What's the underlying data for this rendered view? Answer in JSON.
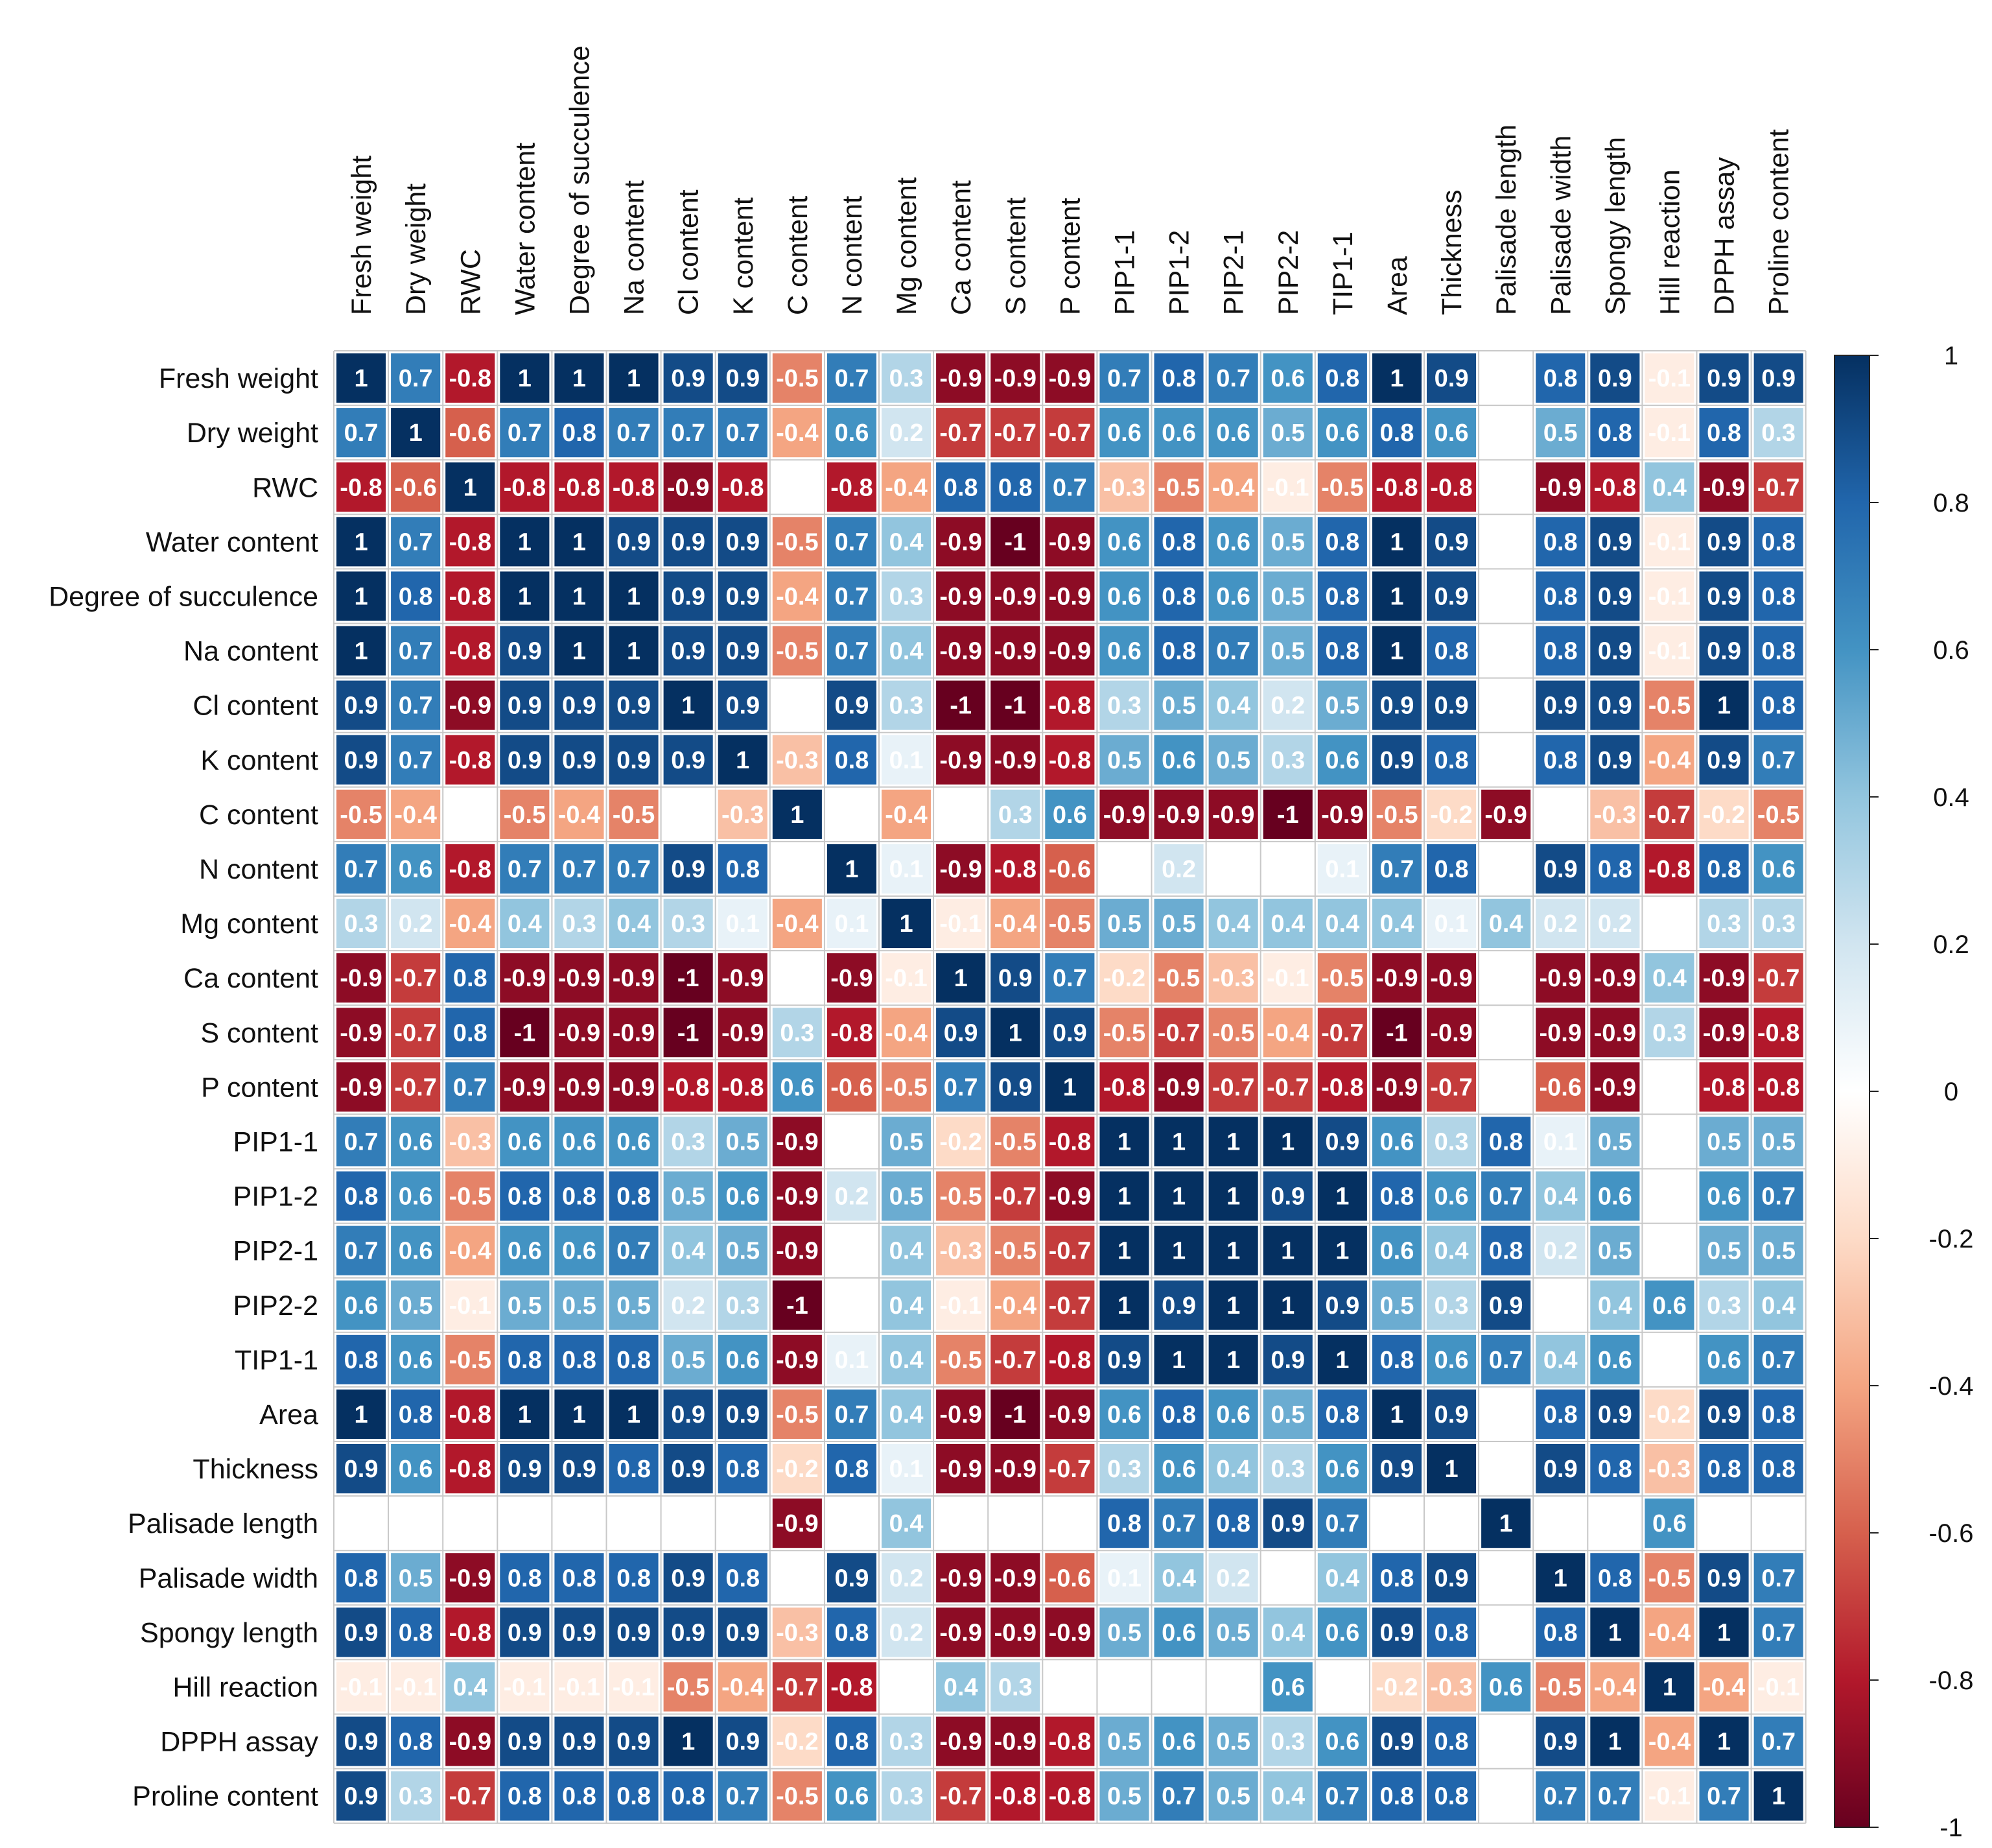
{
  "chart_data": {
    "type": "heatmap",
    "title": "",
    "variables": [
      "Fresh weight",
      "Dry weight",
      "RWC",
      "Water content",
      "Degree of succulence",
      "Na content",
      "Cl content",
      "K content",
      "C content",
      "N content",
      "Mg content",
      "Ca content",
      "S content",
      "P content",
      "PIP1-1",
      "PIP1-2",
      "PIP2-1",
      "PIP2-2",
      "TIP1-1",
      "Area",
      "Thickness",
      "Palisade length",
      "Palisade width",
      "Spongy length",
      "Hill reaction",
      "DPPH assay",
      "Proline content"
    ],
    "matrix": [
      [
        1,
        0.7,
        -0.8,
        1,
        1,
        1,
        0.9,
        0.9,
        -0.5,
        0.7,
        0.3,
        -0.9,
        -0.9,
        -0.9,
        0.7,
        0.8,
        0.7,
        0.6,
        0.8,
        1,
        0.9,
        null,
        0.8,
        0.9,
        -0.1,
        0.9,
        0.9
      ],
      [
        0.7,
        1,
        -0.6,
        0.7,
        0.8,
        0.7,
        0.7,
        0.7,
        -0.4,
        0.6,
        0.2,
        -0.7,
        -0.7,
        -0.7,
        0.6,
        0.6,
        0.6,
        0.5,
        0.6,
        0.8,
        0.6,
        null,
        0.5,
        0.8,
        -0.1,
        0.8,
        0.3
      ],
      [
        -0.8,
        -0.6,
        1,
        -0.8,
        -0.8,
        -0.8,
        -0.9,
        -0.8,
        null,
        -0.8,
        -0.4,
        0.8,
        0.8,
        0.7,
        -0.3,
        -0.5,
        -0.4,
        -0.1,
        -0.5,
        -0.8,
        -0.8,
        null,
        -0.9,
        -0.8,
        0.4,
        -0.9,
        -0.7
      ],
      [
        1,
        0.7,
        -0.8,
        1,
        1,
        0.9,
        0.9,
        0.9,
        -0.5,
        0.7,
        0.4,
        -0.9,
        -1,
        -0.9,
        0.6,
        0.8,
        0.6,
        0.5,
        0.8,
        1,
        0.9,
        null,
        0.8,
        0.9,
        -0.1,
        0.9,
        0.8
      ],
      [
        1,
        0.8,
        -0.8,
        1,
        1,
        1,
        0.9,
        0.9,
        -0.4,
        0.7,
        0.3,
        -0.9,
        -0.9,
        -0.9,
        0.6,
        0.8,
        0.6,
        0.5,
        0.8,
        1,
        0.9,
        null,
        0.8,
        0.9,
        -0.1,
        0.9,
        0.8
      ],
      [
        1,
        0.7,
        -0.8,
        0.9,
        1,
        1,
        0.9,
        0.9,
        -0.5,
        0.7,
        0.4,
        -0.9,
        -0.9,
        -0.9,
        0.6,
        0.8,
        0.7,
        0.5,
        0.8,
        1,
        0.8,
        null,
        0.8,
        0.9,
        -0.1,
        0.9,
        0.8
      ],
      [
        0.9,
        0.7,
        -0.9,
        0.9,
        0.9,
        0.9,
        1,
        0.9,
        null,
        0.9,
        0.3,
        -1,
        -1,
        -0.8,
        0.3,
        0.5,
        0.4,
        0.2,
        0.5,
        0.9,
        0.9,
        null,
        0.9,
        0.9,
        -0.5,
        1,
        0.8
      ],
      [
        0.9,
        0.7,
        -0.8,
        0.9,
        0.9,
        0.9,
        0.9,
        1,
        -0.3,
        0.8,
        0.1,
        -0.9,
        -0.9,
        -0.8,
        0.5,
        0.6,
        0.5,
        0.3,
        0.6,
        0.9,
        0.8,
        null,
        0.8,
        0.9,
        -0.4,
        0.9,
        0.7
      ],
      [
        -0.5,
        -0.4,
        null,
        -0.5,
        -0.4,
        -0.5,
        null,
        -0.3,
        1,
        null,
        -0.4,
        null,
        0.3,
        0.6,
        -0.9,
        -0.9,
        -0.9,
        -1,
        -0.9,
        -0.5,
        -0.2,
        -0.9,
        null,
        -0.3,
        -0.7,
        -0.2,
        -0.5
      ],
      [
        0.7,
        0.6,
        -0.8,
        0.7,
        0.7,
        0.7,
        0.9,
        0.8,
        null,
        1,
        0.1,
        -0.9,
        -0.8,
        -0.6,
        null,
        0.2,
        null,
        null,
        0.1,
        0.7,
        0.8,
        null,
        0.9,
        0.8,
        -0.8,
        0.8,
        0.6
      ],
      [
        0.3,
        0.2,
        -0.4,
        0.4,
        0.3,
        0.4,
        0.3,
        0.1,
        -0.4,
        0.1,
        1,
        -0.1,
        -0.4,
        -0.5,
        0.5,
        0.5,
        0.4,
        0.4,
        0.4,
        0.4,
        0.1,
        0.4,
        0.2,
        0.2,
        null,
        0.3,
        0.3
      ],
      [
        -0.9,
        -0.7,
        0.8,
        -0.9,
        -0.9,
        -0.9,
        -1,
        -0.9,
        null,
        -0.9,
        -0.1,
        1,
        0.9,
        0.7,
        -0.2,
        -0.5,
        -0.3,
        -0.1,
        -0.5,
        -0.9,
        -0.9,
        null,
        -0.9,
        -0.9,
        0.4,
        -0.9,
        -0.7
      ],
      [
        -0.9,
        -0.7,
        0.8,
        -1,
        -0.9,
        -0.9,
        -1,
        -0.9,
        0.3,
        -0.8,
        -0.4,
        0.9,
        1,
        0.9,
        -0.5,
        -0.7,
        -0.5,
        -0.4,
        -0.7,
        -1,
        -0.9,
        null,
        -0.9,
        -0.9,
        0.3,
        -0.9,
        -0.8
      ],
      [
        -0.9,
        -0.7,
        0.7,
        -0.9,
        -0.9,
        -0.9,
        -0.8,
        -0.8,
        0.6,
        -0.6,
        -0.5,
        0.7,
        0.9,
        1,
        -0.8,
        -0.9,
        -0.7,
        -0.7,
        -0.8,
        -0.9,
        -0.7,
        null,
        -0.6,
        -0.9,
        null,
        -0.8,
        -0.8
      ],
      [
        0.7,
        0.6,
        -0.3,
        0.6,
        0.6,
        0.6,
        0.3,
        0.5,
        -0.9,
        null,
        0.5,
        -0.2,
        -0.5,
        -0.8,
        1,
        1,
        1,
        1,
        0.9,
        0.6,
        0.3,
        0.8,
        0.1,
        0.5,
        null,
        0.5,
        0.5
      ],
      [
        0.8,
        0.6,
        -0.5,
        0.8,
        0.8,
        0.8,
        0.5,
        0.6,
        -0.9,
        0.2,
        0.5,
        -0.5,
        -0.7,
        -0.9,
        1,
        1,
        1,
        0.9,
        1,
        0.8,
        0.6,
        0.7,
        0.4,
        0.6,
        null,
        0.6,
        0.7
      ],
      [
        0.7,
        0.6,
        -0.4,
        0.6,
        0.6,
        0.7,
        0.4,
        0.5,
        -0.9,
        null,
        0.4,
        -0.3,
        -0.5,
        -0.7,
        1,
        1,
        1,
        1,
        1,
        0.6,
        0.4,
        0.8,
        0.2,
        0.5,
        null,
        0.5,
        0.5
      ],
      [
        0.6,
        0.5,
        -0.1,
        0.5,
        0.5,
        0.5,
        0.2,
        0.3,
        -1,
        null,
        0.4,
        -0.1,
        -0.4,
        -0.7,
        1,
        0.9,
        1,
        1,
        0.9,
        0.5,
        0.3,
        0.9,
        null,
        0.4,
        0.6,
        0.3,
        0.4
      ],
      [
        0.8,
        0.6,
        -0.5,
        0.8,
        0.8,
        0.8,
        0.5,
        0.6,
        -0.9,
        0.1,
        0.4,
        -0.5,
        -0.7,
        -0.8,
        0.9,
        1,
        1,
        0.9,
        1,
        0.8,
        0.6,
        0.7,
        0.4,
        0.6,
        null,
        0.6,
        0.7
      ],
      [
        1,
        0.8,
        -0.8,
        1,
        1,
        1,
        0.9,
        0.9,
        -0.5,
        0.7,
        0.4,
        -0.9,
        -1,
        -0.9,
        0.6,
        0.8,
        0.6,
        0.5,
        0.8,
        1,
        0.9,
        null,
        0.8,
        0.9,
        -0.2,
        0.9,
        0.8
      ],
      [
        0.9,
        0.6,
        -0.8,
        0.9,
        0.9,
        0.8,
        0.9,
        0.8,
        -0.2,
        0.8,
        0.1,
        -0.9,
        -0.9,
        -0.7,
        0.3,
        0.6,
        0.4,
        0.3,
        0.6,
        0.9,
        1,
        null,
        0.9,
        0.8,
        -0.3,
        0.8,
        0.8
      ],
      [
        null,
        null,
        null,
        null,
        null,
        null,
        null,
        null,
        -0.9,
        null,
        0.4,
        null,
        null,
        null,
        0.8,
        0.7,
        0.8,
        0.9,
        0.7,
        null,
        null,
        1,
        null,
        null,
        0.6,
        null,
        null
      ],
      [
        0.8,
        0.5,
        -0.9,
        0.8,
        0.8,
        0.8,
        0.9,
        0.8,
        null,
        0.9,
        0.2,
        -0.9,
        -0.9,
        -0.6,
        0.1,
        0.4,
        0.2,
        null,
        0.4,
        0.8,
        0.9,
        null,
        1,
        0.8,
        -0.5,
        0.9,
        0.7
      ],
      [
        0.9,
        0.8,
        -0.8,
        0.9,
        0.9,
        0.9,
        0.9,
        0.9,
        -0.3,
        0.8,
        0.2,
        -0.9,
        -0.9,
        -0.9,
        0.5,
        0.6,
        0.5,
        0.4,
        0.6,
        0.9,
        0.8,
        null,
        0.8,
        1,
        -0.4,
        1,
        0.7
      ],
      [
        -0.1,
        -0.1,
        0.4,
        -0.1,
        -0.1,
        -0.1,
        -0.5,
        -0.4,
        -0.7,
        -0.8,
        null,
        0.4,
        0.3,
        null,
        null,
        null,
        null,
        0.6,
        null,
        -0.2,
        -0.3,
        0.6,
        -0.5,
        -0.4,
        1,
        -0.4,
        -0.1
      ],
      [
        0.9,
        0.8,
        -0.9,
        0.9,
        0.9,
        0.9,
        1,
        0.9,
        -0.2,
        0.8,
        0.3,
        -0.9,
        -0.9,
        -0.8,
        0.5,
        0.6,
        0.5,
        0.3,
        0.6,
        0.9,
        0.8,
        null,
        0.9,
        1,
        -0.4,
        1,
        0.7
      ],
      [
        0.9,
        0.3,
        -0.7,
        0.8,
        0.8,
        0.8,
        0.8,
        0.7,
        -0.5,
        0.6,
        0.3,
        -0.7,
        -0.8,
        -0.8,
        0.5,
        0.7,
        0.5,
        0.4,
        0.7,
        0.8,
        0.8,
        null,
        0.7,
        0.7,
        -0.1,
        0.7,
        1
      ]
    ],
    "colorbar": {
      "ticks": [
        1,
        0.8,
        0.6,
        0.4,
        0.2,
        0,
        -0.2,
        -0.4,
        -0.6,
        -0.8,
        -1
      ],
      "range": [
        -1,
        1
      ],
      "colors": {
        "neg": "#67001F",
        "mid": "#FFFFFF",
        "pos": "#053061"
      }
    }
  }
}
